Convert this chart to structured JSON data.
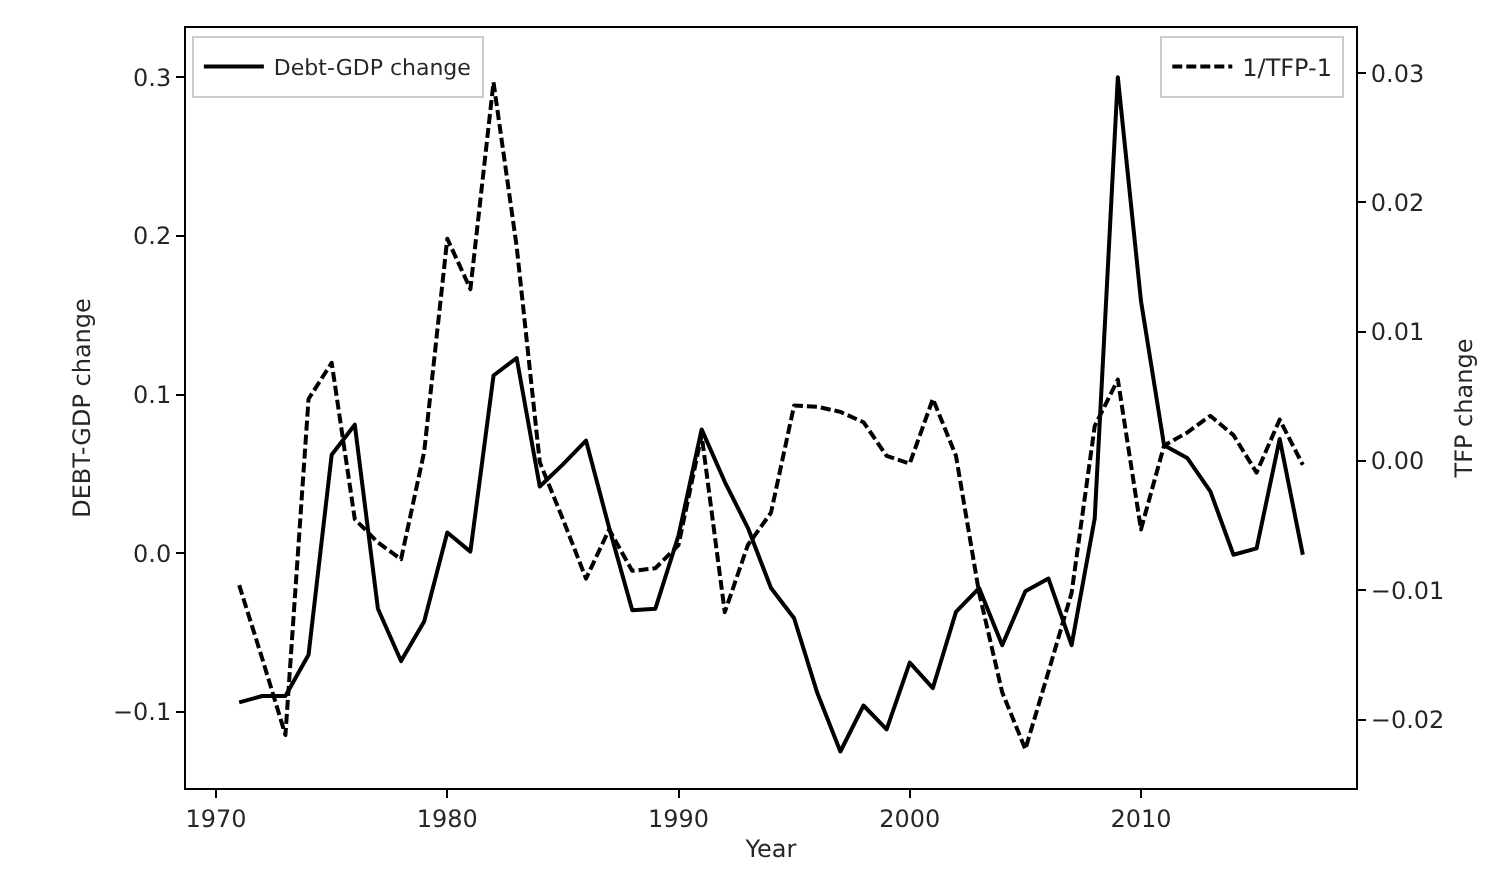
{
  "chart_data": {
    "type": "line",
    "xlabel": "Year",
    "ylabel": "DEBT-GDP change",
    "y2label": "TFP change",
    "x": [
      1971,
      1972,
      1973,
      1974,
      1975,
      1976,
      1977,
      1978,
      1979,
      1980,
      1981,
      1982,
      1983,
      1984,
      1985,
      1986,
      1987,
      1988,
      1989,
      1990,
      1991,
      1992,
      1993,
      1994,
      1995,
      1996,
      1997,
      1998,
      1999,
      2000,
      2001,
      2002,
      2003,
      2004,
      2005,
      2006,
      2007,
      2008,
      2009,
      2010,
      2011,
      2012,
      2013,
      2014,
      2015,
      2016,
      2017
    ],
    "series": [
      {
        "name": "Debt-GDP change",
        "color": "#000000",
        "line_style": "solid",
        "values": [
          -0.094,
          -0.09,
          -0.09,
          -0.064,
          0.062,
          0.081,
          -0.035,
          -0.068,
          -0.043,
          0.013,
          0.001,
          0.112,
          0.123,
          0.042,
          0.056,
          0.071,
          0.016,
          -0.036,
          -0.035,
          0.011,
          0.078,
          0.045,
          0.016,
          -0.022,
          -0.041,
          -0.088,
          -0.125,
          -0.096,
          -0.111,
          -0.069,
          -0.085,
          -0.037,
          -0.022,
          -0.058,
          -0.024,
          -0.016,
          -0.058,
          0.022,
          0.3,
          0.159,
          0.068,
          0.06,
          0.039,
          -0.001,
          0.003,
          0.072,
          -0.001
        ]
      },
      {
        "name": "1/TFP-1",
        "color": "#000000",
        "line_style": "dashed",
        "axis": "y2",
        "values": [
          -0.0096,
          -0.0153,
          -0.0212,
          0.0048,
          0.0076,
          -0.0045,
          -0.0063,
          -0.0076,
          0.0007,
          0.0172,
          0.0133,
          0.0293,
          0.0166,
          -0.0001,
          -0.0045,
          -0.0091,
          -0.0053,
          -0.0085,
          -0.0083,
          -0.0065,
          0.002,
          -0.0117,
          -0.0065,
          -0.004,
          0.0043,
          0.0042,
          0.0038,
          0.003,
          0.0004,
          -0.0002,
          0.0048,
          0.0004,
          -0.0102,
          -0.0179,
          -0.0223,
          -0.0163,
          -0.0102,
          0.0027,
          0.0063,
          -0.0053,
          0.0012,
          0.0022,
          0.0035,
          0.002,
          -0.0009,
          0.0032,
          -0.0003
        ]
      }
    ],
    "xlim": [
      1968.7,
      2019.3
    ],
    "xticks": [
      1970,
      1980,
      1990,
      2000,
      2010
    ],
    "ylim": [
      -0.148,
      0.331
    ],
    "yticks": [
      {
        "value": -0.1,
        "label": "−0.1"
      },
      {
        "value": 0,
        "label": "0.0"
      },
      0.1,
      0.2,
      0.3
    ],
    "y2lim": [
      -0.0253,
      0.0335
    ],
    "y2ticks": [
      {
        "value": -0.02,
        "label": "−0.02"
      },
      {
        "value": -0.01,
        "label": "−0.01"
      },
      {
        "value": 0,
        "label": "0.00"
      },
      {
        "value": 0.01,
        "label": "0.01"
      },
      {
        "value": 0.02,
        "label": "0.02"
      },
      {
        "value": 0.03,
        "label": "0.03"
      }
    ],
    "grid": false,
    "legend": "top",
    "marker": "none"
  }
}
